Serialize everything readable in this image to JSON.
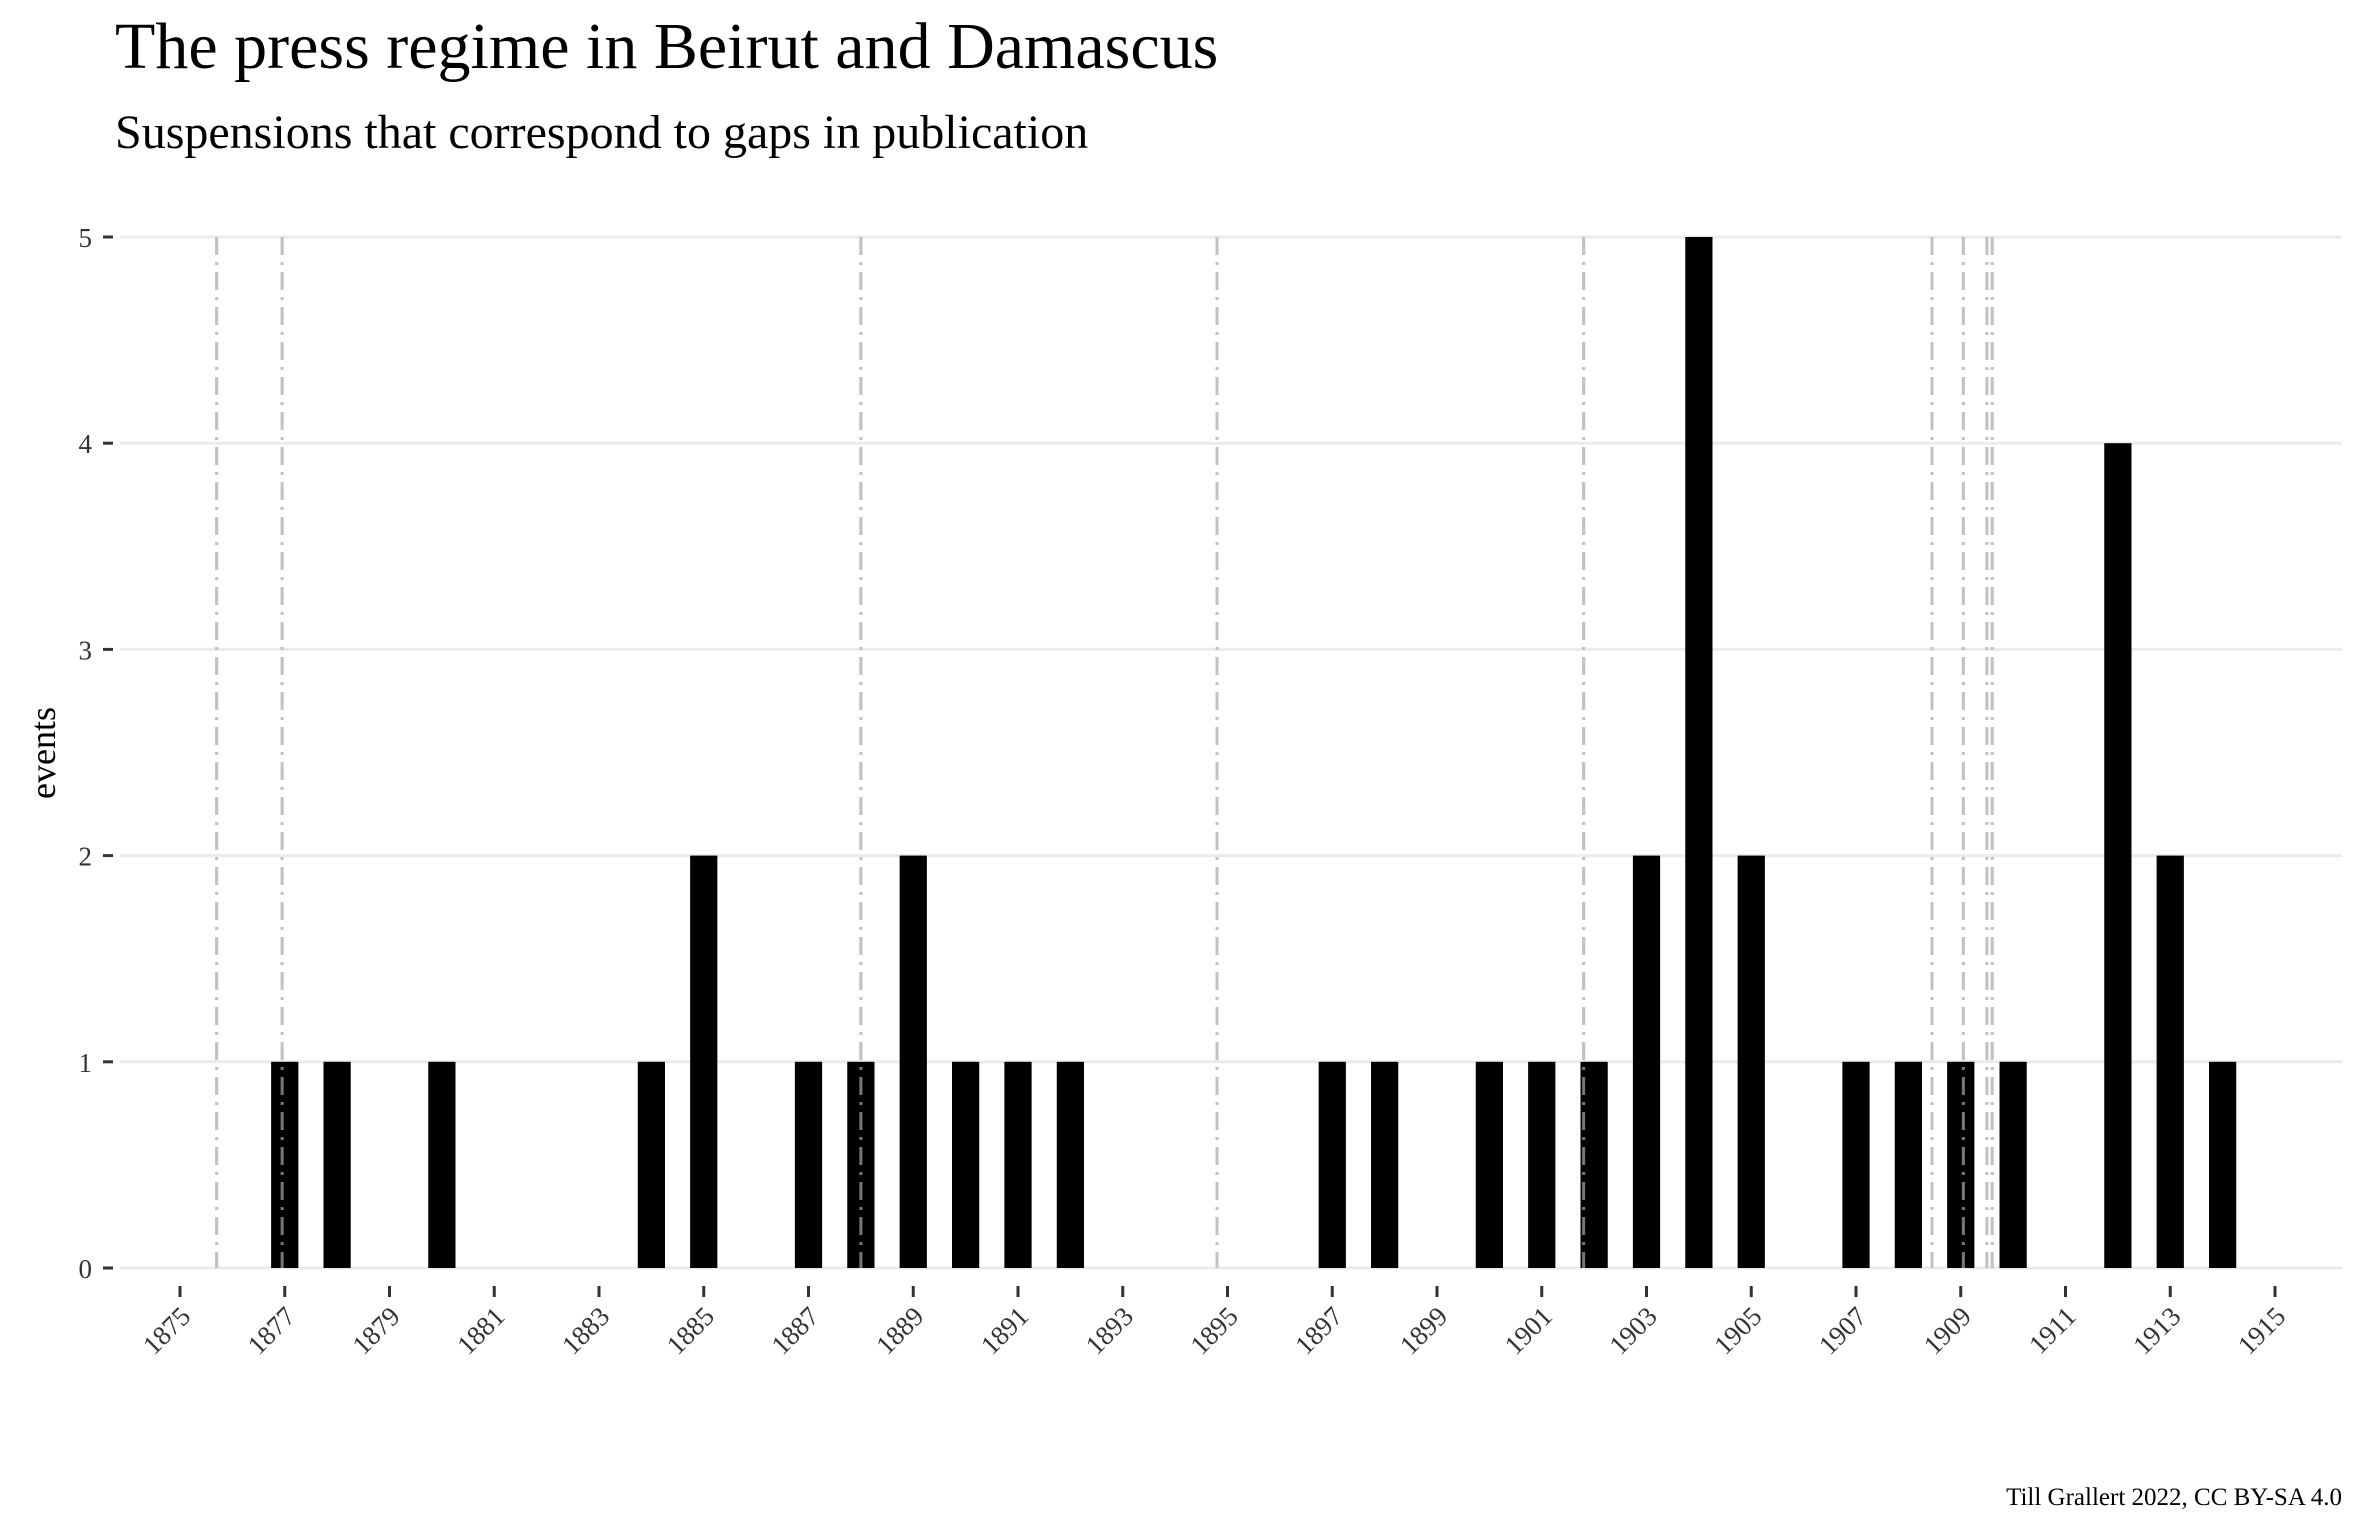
{
  "chart_data": {
    "type": "bar",
    "title": "The press regime in Beirut and Damascus",
    "subtitle": "Suspensions that correspond to gaps in publication",
    "xlabel": "",
    "ylabel": "events",
    "caption": "Till Grallert 2022, CC BY-SA 4.0",
    "xlim": [
      1874.5,
      1915.5
    ],
    "ylim": [
      0,
      5
    ],
    "y_ticks": [
      0,
      1,
      2,
      3,
      4,
      5
    ],
    "x_ticks": [
      1875,
      1877,
      1879,
      1881,
      1883,
      1885,
      1887,
      1889,
      1891,
      1893,
      1895,
      1897,
      1899,
      1901,
      1903,
      1905,
      1907,
      1909,
      1911,
      1913,
      1915
    ],
    "grid": "horizontal",
    "bar_color": "#000000",
    "series": [
      {
        "x": [
          1877,
          1878,
          1880,
          1884,
          1885,
          1887,
          1888,
          1889,
          1890,
          1891,
          1892,
          1897,
          1898,
          1900,
          1901,
          1902,
          1903,
          1904,
          1905,
          1907,
          1908,
          1909,
          1910,
          1912,
          1913,
          1914
        ],
        "values": [
          1,
          1,
          1,
          1,
          2,
          1,
          1,
          2,
          1,
          1,
          1,
          1,
          1,
          1,
          1,
          1,
          2,
          5,
          2,
          1,
          1,
          1,
          1,
          4,
          2,
          1
        ]
      }
    ],
    "reference_lines": {
      "style": "dash-dot",
      "color": "#a6a6a6",
      "x": [
        1875.7,
        1876.95,
        1888.0,
        1894.8,
        1901.8,
        1908.45,
        1909.05,
        1909.5,
        1909.6
      ]
    }
  }
}
